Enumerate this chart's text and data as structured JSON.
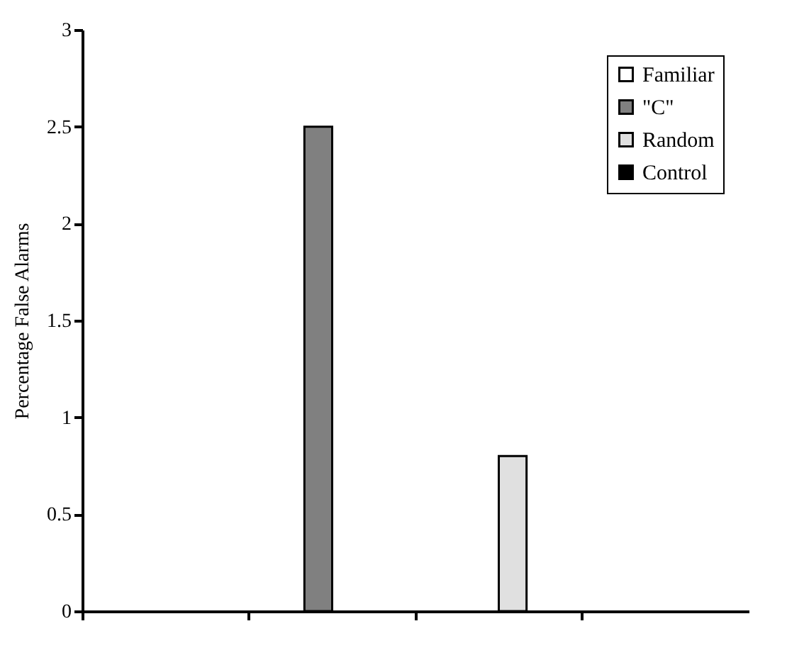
{
  "chart_data": {
    "type": "bar",
    "ylabel": "Percentage False Alarms",
    "categories": [
      null,
      null,
      null,
      null
    ],
    "series": [
      {
        "name": "Familiar",
        "color": "#ffffff",
        "values": [
          0,
          null,
          null,
          null
        ]
      },
      {
        "name": "\"C\"",
        "color": "#808080",
        "values": [
          null,
          2.5,
          null,
          null
        ]
      },
      {
        "name": "Random",
        "color": "#e0e0e0",
        "values": [
          null,
          null,
          0.8,
          null
        ]
      },
      {
        "name": "Control",
        "color": "#000000",
        "values": [
          null,
          null,
          null,
          0
        ]
      }
    ],
    "ylim": [
      0,
      3
    ],
    "yticks": [
      0,
      0.5,
      1,
      1.5,
      2,
      2.5,
      3
    ],
    "legend": "top right",
    "tick_labels": "y"
  }
}
